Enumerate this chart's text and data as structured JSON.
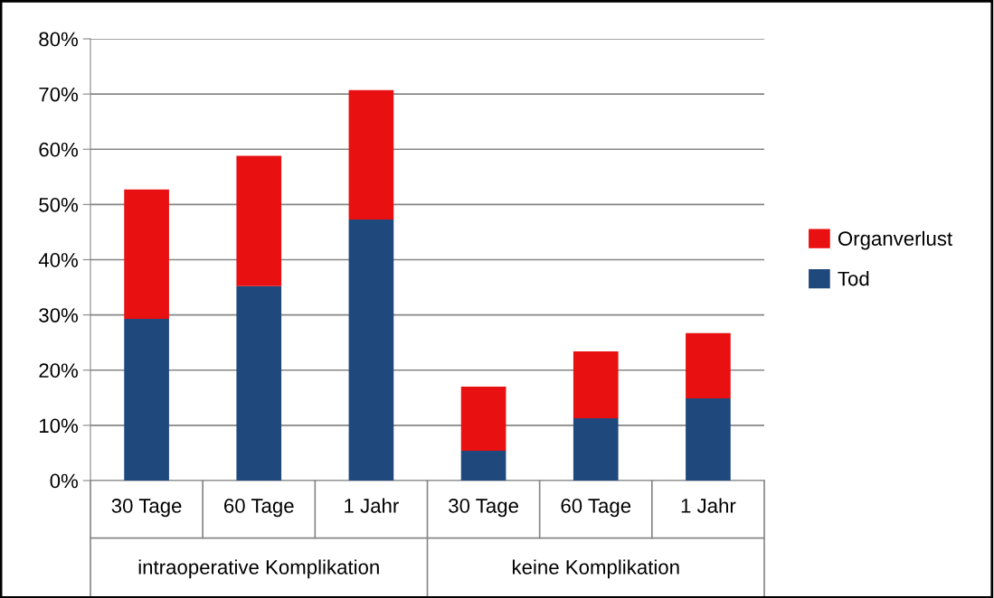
{
  "chart_data": {
    "type": "bar",
    "stacked": true,
    "categories": [
      "30 Tage",
      "60 Tage",
      "1 Jahr",
      "30 Tage",
      "60 Tage",
      "1 Jahr"
    ],
    "series": [
      {
        "name": "Tod",
        "color": "#1f497d",
        "values": [
          29.3,
          35.2,
          47.3,
          5.4,
          11.3,
          14.9
        ]
      },
      {
        "name": "Organverlust",
        "color": "#e81010",
        "values": [
          23.4,
          23.6,
          23.4,
          11.6,
          12.1,
          11.8
        ]
      }
    ],
    "annotations": [
      "intraoperative Komplikation",
      "keine Komplikation"
    ],
    "ylim": [
      0,
      80
    ],
    "yticks": [
      {
        "value": 0,
        "label": "0%"
      },
      {
        "value": 10,
        "label": "10%"
      },
      {
        "value": 20,
        "label": "20%"
      },
      {
        "value": 30,
        "label": "30%"
      },
      {
        "value": 40,
        "label": "40%"
      },
      {
        "value": 50,
        "label": "50%"
      },
      {
        "value": 60,
        "label": "60%"
      },
      {
        "value": 70,
        "label": "70%"
      },
      {
        "value": 80,
        "label": "80%"
      }
    ],
    "grid": "y",
    "legend": "right"
  }
}
